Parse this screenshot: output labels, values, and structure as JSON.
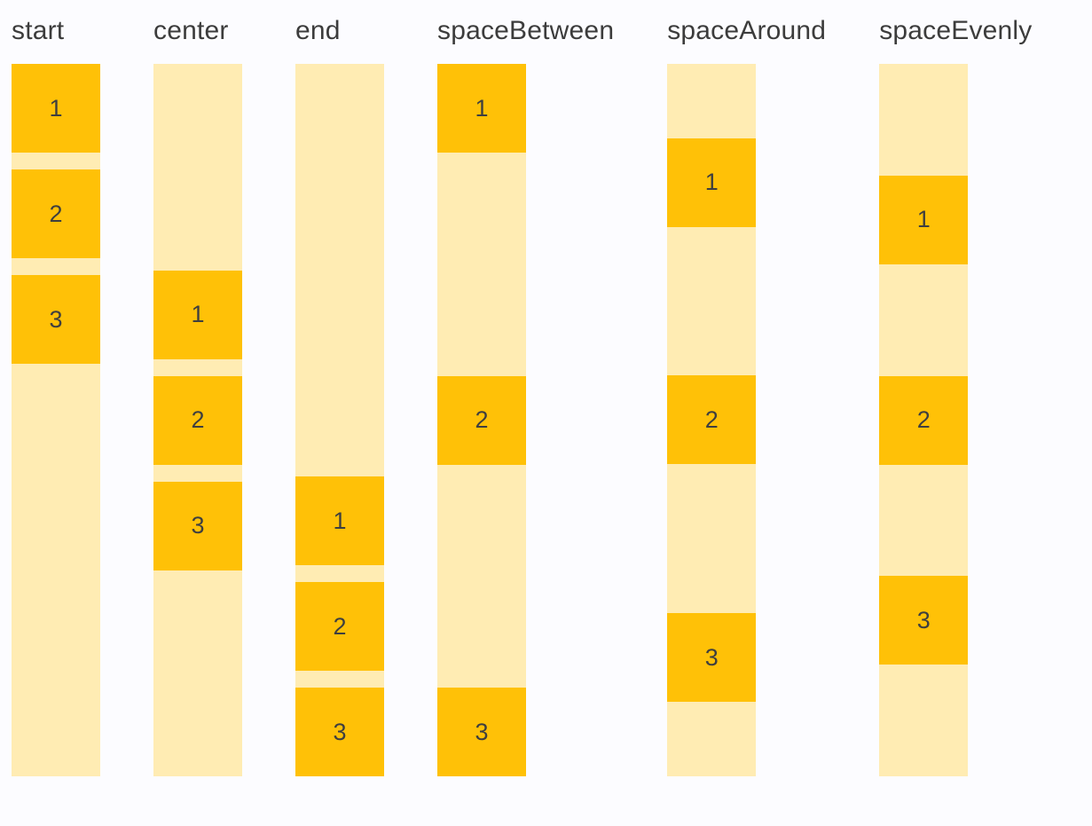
{
  "page": {
    "background_color": "#FCFCFF"
  },
  "colors": {
    "item_fill": "#FFC107",
    "track_fill": "#FFECB3",
    "label_text": "#3C3C3C",
    "item_text": "#3F3F3F"
  },
  "columns": [
    {
      "label": "start",
      "items": [
        "1",
        "2",
        "3"
      ]
    },
    {
      "label": "center",
      "items": [
        "1",
        "2",
        "3"
      ]
    },
    {
      "label": "end",
      "items": [
        "1",
        "2",
        "3"
      ]
    },
    {
      "label": "spaceBetween",
      "items": [
        "1",
        "2",
        "3"
      ]
    },
    {
      "label": "spaceAround",
      "items": [
        "1",
        "2",
        "3"
      ]
    },
    {
      "label": "spaceEvenly",
      "items": [
        "1",
        "2",
        "3"
      ]
    }
  ]
}
